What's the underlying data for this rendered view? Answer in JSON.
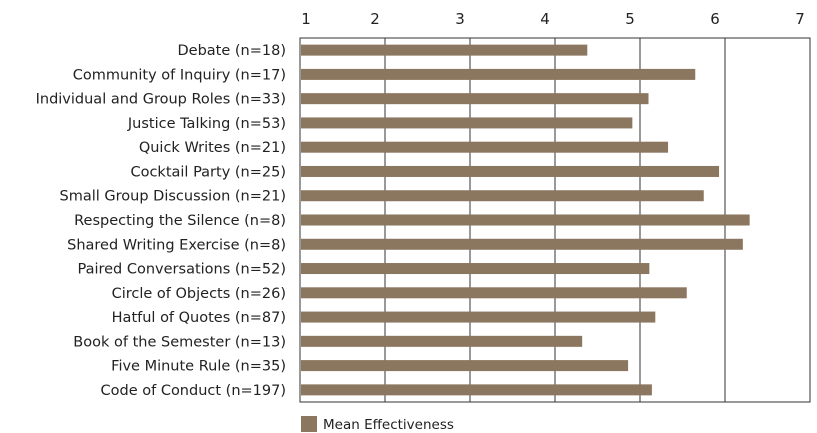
{
  "chart_data": {
    "type": "bar",
    "orientation": "horizontal",
    "categories": [
      "Debate (n=18)",
      "Community of Inquiry (n=17)",
      "Individual and Group Roles (n=33)",
      "Justice Talking (n=53)",
      "Quick Writes (n=21)",
      "Cocktail Party (n=25)",
      "Small Group Discussion (n=21)",
      "Respecting the Silence (n=8)",
      "Shared Writing Exercise (n=8)",
      "Paired Conversations (n=52)",
      "Circle of Objects (n=26)",
      "Hatful of Quotes (n=87)",
      "Book of the Semester (n=13)",
      "Five Minute Rule (n=35)",
      "Code of Conduct (n=197)"
    ],
    "series": [
      {
        "name": "Mean Effectiveness",
        "color": "#8b7660",
        "values": [
          4.38,
          5.65,
          5.1,
          4.91,
          5.33,
          5.93,
          5.75,
          6.29,
          6.21,
          5.11,
          5.55,
          5.18,
          4.32,
          4.86,
          5.14
        ]
      }
    ],
    "xlim": [
      1,
      7
    ],
    "xticks": [
      "1",
      "2",
      "3",
      "4",
      "5",
      "6",
      "7"
    ],
    "title": "",
    "xlabel": "",
    "ylabel": "",
    "grid": "vertical",
    "legend_position": "bottom-center"
  }
}
